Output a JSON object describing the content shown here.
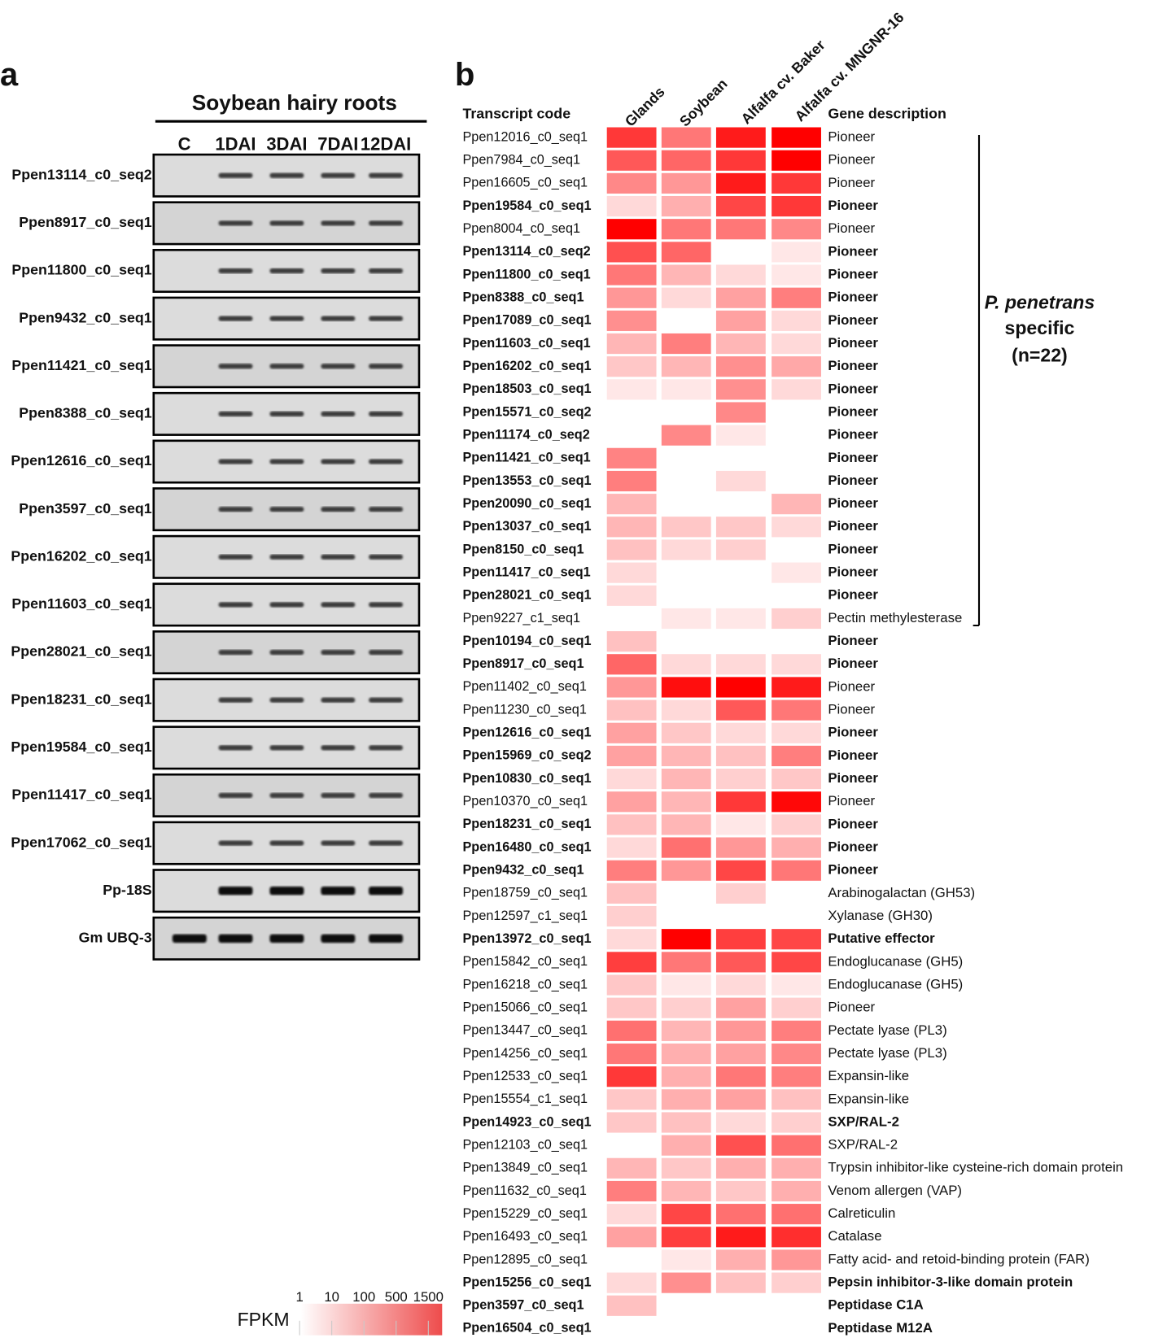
{
  "panel_a": {
    "letter": "a",
    "title": "Soybean hairy roots",
    "lanes": [
      "C",
      "1DAI",
      "3DAI",
      "7DAI",
      "12DAI"
    ],
    "genes": [
      "Ppen13114_c0_seq2",
      "Ppen8917_c0_seq1",
      "Ppen11800_c0_seq1",
      "Ppen9432_c0_seq1",
      "Ppen11421_c0_seq1",
      "Ppen8388_c0_seq1",
      "Ppen12616_c0_seq1",
      "Ppen3597_c0_seq1",
      "Ppen16202_c0_seq1",
      "Ppen11603_c0_seq1",
      "Ppen28021_c0_seq1",
      "Ppen18231_c0_seq1",
      "Ppen19584_c0_seq1",
      "Ppen11417_c0_seq1",
      "Ppen17062_c0_seq1",
      "Pp-18S",
      "Gm UBQ-3"
    ]
  },
  "panel_b": {
    "letter": "b",
    "code_header": "Transcript code",
    "desc_header": "Gene description",
    "columns": [
      "Glands",
      "Soybean",
      "Alfalfa cv. Baker",
      "Alfalfa cv. MNGNR-16"
    ],
    "scale": "log",
    "color": "#ff0000",
    "group_label": [
      "P. penetrans",
      "specific",
      "(n=22)"
    ],
    "legend": {
      "title": "FPKM",
      "ticks": [
        1,
        10,
        100,
        500,
        1500
      ]
    },
    "rows": [
      {
        "code": "Ppen12016_c0_seq1",
        "bold": false,
        "values": [
          300,
          50,
          700,
          1500
        ],
        "description": "Pioneer"
      },
      {
        "code": "Ppen7984_c0_seq1",
        "bold": false,
        "values": [
          120,
          80,
          300,
          1500
        ],
        "description": "Pioneer"
      },
      {
        "code": "Ppen16605_c0_seq1",
        "bold": false,
        "values": [
          30,
          20,
          700,
          300
        ],
        "description": "Pioneer"
      },
      {
        "code": "Ppen19584_c0_seq1",
        "bold": true,
        "values": [
          3,
          10,
          200,
          300
        ],
        "description": "Pioneer"
      },
      {
        "code": "Ppen8004_c0_seq1",
        "bold": false,
        "values": [
          1500,
          50,
          50,
          30
        ],
        "description": "Pioneer"
      },
      {
        "code": "Ppen13114_c0_seq2",
        "bold": true,
        "values": [
          150,
          80,
          1,
          2
        ],
        "description": "Pioneer"
      },
      {
        "code": "Ppen11800_c0_seq1",
        "bold": true,
        "values": [
          50,
          8,
          3,
          2
        ],
        "description": "Pioneer"
      },
      {
        "code": "Ppen8388_c0_seq1",
        "bold": true,
        "values": [
          20,
          3,
          15,
          40
        ],
        "description": "Pioneer"
      },
      {
        "code": "Ppen17089_c0_seq1",
        "bold": true,
        "values": [
          25,
          1,
          15,
          3
        ],
        "description": "Pioneer"
      },
      {
        "code": "Ppen11603_c0_seq1",
        "bold": true,
        "values": [
          8,
          40,
          8,
          3
        ],
        "description": "Pioneer"
      },
      {
        "code": "Ppen16202_c0_seq1",
        "bold": true,
        "values": [
          5,
          8,
          25,
          12
        ],
        "description": "Pioneer"
      },
      {
        "code": "Ppen18503_c0_seq1",
        "bold": true,
        "values": [
          2,
          2,
          25,
          3
        ],
        "description": "Pioneer"
      },
      {
        "code": "Ppen15571_c0_seq2",
        "bold": true,
        "values": [
          1,
          1,
          30,
          1
        ],
        "description": "Pioneer"
      },
      {
        "code": "Ppen11174_c0_seq2",
        "bold": true,
        "values": [
          1,
          30,
          2,
          1
        ],
        "description": "Pioneer"
      },
      {
        "code": "Ppen11421_c0_seq1",
        "bold": true,
        "values": [
          35,
          1,
          1,
          1
        ],
        "description": "Pioneer"
      },
      {
        "code": "Ppen13553_c0_seq1",
        "bold": true,
        "values": [
          40,
          1,
          3,
          1
        ],
        "description": "Pioneer"
      },
      {
        "code": "Ppen20090_c0_seq1",
        "bold": true,
        "values": [
          8,
          1,
          1,
          8
        ],
        "description": "Pioneer"
      },
      {
        "code": "Ppen13037_c0_seq1",
        "bold": true,
        "values": [
          8,
          5,
          5,
          3
        ],
        "description": "Pioneer"
      },
      {
        "code": "Ppen8150_c0_seq1",
        "bold": true,
        "values": [
          6,
          3,
          4,
          1
        ],
        "description": "Pioneer"
      },
      {
        "code": "Ppen11417_c0_seq1",
        "bold": true,
        "values": [
          3,
          1,
          1,
          2
        ],
        "description": "Pioneer"
      },
      {
        "code": "Ppen28021_c0_seq1",
        "bold": true,
        "values": [
          3,
          1,
          1,
          1
        ],
        "description": "Pioneer"
      },
      {
        "code": "Ppen9227_c1_seq1",
        "bold": false,
        "values": [
          1,
          2,
          2,
          4
        ],
        "description": "Pectin methylesterase"
      },
      {
        "code": "Ppen10194_c0_seq1",
        "bold": true,
        "values": [
          6,
          1,
          1,
          1
        ],
        "description": "Pioneer"
      },
      {
        "code": "Ppen8917_c0_seq1",
        "bold": true,
        "values": [
          80,
          3,
          3,
          3
        ],
        "description": "Pioneer"
      },
      {
        "code": "Ppen11402_c0_seq1",
        "bold": false,
        "values": [
          20,
          1000,
          1500,
          700
        ],
        "description": "Pioneer"
      },
      {
        "code": "Ppen11230_c0_seq1",
        "bold": false,
        "values": [
          6,
          3,
          120,
          50
        ],
        "description": "Pioneer"
      },
      {
        "code": "Ppen12616_c0_seq1",
        "bold": true,
        "values": [
          15,
          5,
          3,
          3
        ],
        "description": "Pioneer"
      },
      {
        "code": "Ppen15969_c0_seq2",
        "bold": true,
        "values": [
          15,
          8,
          6,
          40
        ],
        "description": "Pioneer"
      },
      {
        "code": "Ppen10830_c0_seq1",
        "bold": true,
        "values": [
          3,
          8,
          4,
          5
        ],
        "description": "Pioneer"
      },
      {
        "code": "Ppen10370_c0_seq1",
        "bold": false,
        "values": [
          15,
          8,
          300,
          1200
        ],
        "description": "Pioneer"
      },
      {
        "code": "Ppen18231_c0_seq1",
        "bold": true,
        "values": [
          6,
          8,
          2,
          4
        ],
        "description": "Pioneer"
      },
      {
        "code": "Ppen16480_c0_seq1",
        "bold": true,
        "values": [
          3,
          60,
          20,
          10
        ],
        "description": "Pioneer"
      },
      {
        "code": "Ppen9432_c0_seq1",
        "bold": true,
        "values": [
          40,
          20,
          200,
          50
        ],
        "description": "Pioneer"
      },
      {
        "code": "Ppen18759_c0_seq1",
        "bold": false,
        "values": [
          6,
          1,
          4,
          1
        ],
        "description": "Arabinogalactan (GH53)"
      },
      {
        "code": "Ppen12597_c1_seq1",
        "bold": false,
        "values": [
          4,
          1,
          1,
          1
        ],
        "description": "Xylanase (GH30)"
      },
      {
        "code": "Ppen13972_c0_seq1",
        "bold": true,
        "values": [
          3,
          1500,
          250,
          200
        ],
        "description": "Putative effector"
      },
      {
        "code": "Ppen15842_c0_seq1",
        "bold": false,
        "values": [
          250,
          50,
          120,
          200
        ],
        "description": "Endoglucanase (GH5)"
      },
      {
        "code": "Ppen16218_c0_seq1",
        "bold": false,
        "values": [
          5,
          2,
          3,
          2
        ],
        "description": "Endoglucanase (GH5)"
      },
      {
        "code": "Ppen15066_c0_seq1",
        "bold": false,
        "values": [
          5,
          4,
          15,
          4
        ],
        "description": "Pioneer"
      },
      {
        "code": "Ppen13447_c0_seq1",
        "bold": false,
        "values": [
          60,
          8,
          20,
          40
        ],
        "description": "Pectate lyase (PL3)"
      },
      {
        "code": "Ppen14256_c0_seq1",
        "bold": false,
        "values": [
          50,
          10,
          15,
          30
        ],
        "description": "Pectate lyase (PL3)"
      },
      {
        "code": "Ppen12533_c0_seq1",
        "bold": false,
        "values": [
          300,
          10,
          50,
          40
        ],
        "description": "Expansin-like"
      },
      {
        "code": "Ppen15554_c1_seq1",
        "bold": false,
        "values": [
          5,
          10,
          15,
          6
        ],
        "description": "Expansin-like"
      },
      {
        "code": "Ppen14923_c0_seq1",
        "bold": true,
        "values": [
          5,
          6,
          3,
          4
        ],
        "description": "SXP/RAL-2"
      },
      {
        "code": "Ppen12103_c0_seq1",
        "bold": false,
        "values": [
          1,
          10,
          150,
          60
        ],
        "description": "SXP/RAL-2"
      },
      {
        "code": "Ppen13849_c0_seq1",
        "bold": false,
        "values": [
          8,
          5,
          10,
          10
        ],
        "description": "Trypsin inhibitor-like cysteine-rich domain protein"
      },
      {
        "code": "Ppen11632_c0_seq1",
        "bold": false,
        "values": [
          40,
          8,
          5,
          10
        ],
        "description": "Venom allergen (VAP)"
      },
      {
        "code": "Ppen15229_c0_seq1",
        "bold": false,
        "values": [
          3,
          200,
          60,
          60
        ],
        "description": "Calreticulin"
      },
      {
        "code": "Ppen16493_c0_seq1",
        "bold": false,
        "values": [
          15,
          250,
          700,
          400
        ],
        "description": "Catalase"
      },
      {
        "code": "Ppen12895_c0_seq1",
        "bold": false,
        "values": [
          1,
          2,
          10,
          20
        ],
        "description": "Fatty acid- and retoid-binding protein (FAR)"
      },
      {
        "code": "Ppen15256_c0_seq1",
        "bold": true,
        "values": [
          3,
          25,
          6,
          4
        ],
        "description": "Pepsin inhibitor-3-like domain protein"
      },
      {
        "code": "Ppen3597_c0_seq1",
        "bold": true,
        "values": [
          6,
          1,
          1,
          1
        ],
        "description": "Peptidase C1A"
      },
      {
        "code": "Ppen16504_c0_seq1",
        "bold": true,
        "values": [
          1,
          1,
          1,
          1
        ],
        "description": "Peptidase M12A"
      }
    ]
  }
}
